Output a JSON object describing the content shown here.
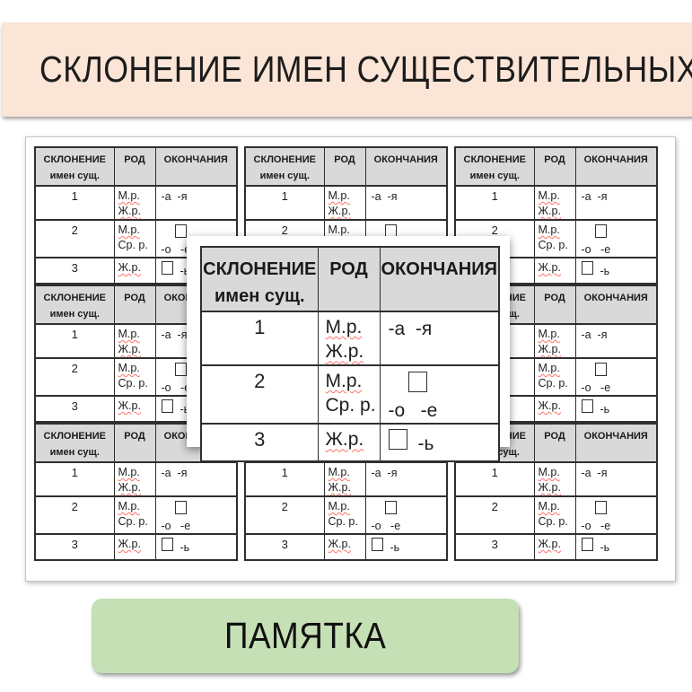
{
  "title": "СКЛОНЕНИЕ ИМЕН СУЩЕСТВИТЕЛЬНЫХ",
  "memo_button": {
    "label": "ПАМЯТКА"
  },
  "colors": {
    "banner_background": "#fbe5d6",
    "table_header_background": "#d9d9d9",
    "button_background": "#c5e0b4",
    "spellcheck_underline": "#ff7066",
    "table_border": "#2f2f2f"
  },
  "table": {
    "header": {
      "declension_line1": "СКЛОНЕНИЕ",
      "declension_line2": "имен сущ.",
      "gender": "РОД",
      "endings": "ОКОНЧАНИЯ"
    },
    "rows": {
      "r1": {
        "number": "1",
        "gender1": "М.р.",
        "gender2": "Ж.р.",
        "endings": "-а  -я"
      },
      "r2": {
        "number": "2",
        "gender1": "М.р.",
        "gender2": "Ср. р.",
        "endings": "-о   -е"
      },
      "r3": {
        "number": "3",
        "gender1": "Ж.р.",
        "endings": "-ь"
      }
    }
  }
}
